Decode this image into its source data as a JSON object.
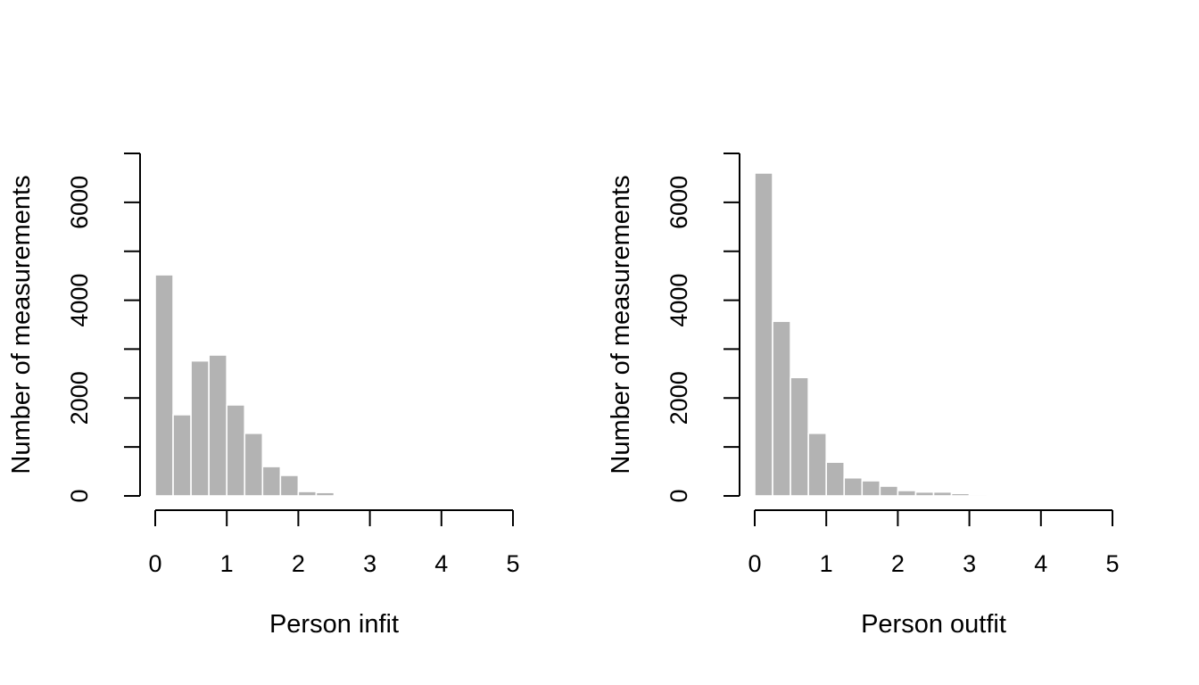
{
  "chart_data": [
    {
      "type": "bar",
      "xlabel": "Person infit",
      "ylabel": "Number of measurements",
      "xlim": [
        0,
        5
      ],
      "ylim": [
        0,
        7000
      ],
      "x_ticks": [
        "0",
        "1",
        "2",
        "3",
        "4",
        "5"
      ],
      "y_ticks": [
        "0",
        "2000",
        "4000",
        "6000"
      ],
      "bin_width": 0.25,
      "bin_starts": [
        0,
        0.25,
        0.5,
        0.75,
        1.0,
        1.25,
        1.5,
        1.75,
        2.0,
        2.25,
        2.5,
        2.75
      ],
      "values": [
        4520,
        1660,
        2760,
        2880,
        1860,
        1280,
        600,
        420,
        90,
        70,
        5,
        15
      ],
      "grid": false
    },
    {
      "type": "bar",
      "xlabel": "Person outfit",
      "ylabel": "Number of measurements",
      "xlim": [
        0,
        5
      ],
      "ylim": [
        0,
        7000
      ],
      "x_ticks": [
        "0",
        "1",
        "2",
        "3",
        "4",
        "5"
      ],
      "y_ticks": [
        "0",
        "2000",
        "4000",
        "6000"
      ],
      "bin_width": 0.25,
      "bin_starts": [
        0,
        0.25,
        0.5,
        0.75,
        1.0,
        1.25,
        1.5,
        1.75,
        2.0,
        2.25,
        2.5,
        2.75,
        3.0,
        3.25,
        3.5,
        3.75,
        4.0
      ],
      "values": [
        6600,
        3570,
        2420,
        1280,
        690,
        370,
        310,
        200,
        110,
        80,
        80,
        50,
        30,
        5,
        5,
        5,
        5
      ],
      "grid": false
    }
  ]
}
